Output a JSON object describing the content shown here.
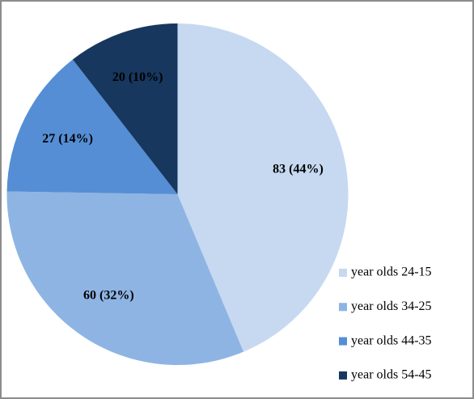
{
  "chart_data": {
    "type": "pie",
    "categories": [
      "year olds 24-15",
      "year olds 34-25",
      "year olds 44-35",
      "year olds 54-45"
    ],
    "values": [
      83,
      60,
      27,
      20
    ],
    "value_labels": [
      "83 (44%)",
      "60 (32%)",
      "27 (14%)",
      "20 (10%)"
    ],
    "colors": [
      "#c6d9f1",
      "#8eb4e3",
      "#558ed5",
      "#17375e"
    ],
    "legend": "right"
  }
}
